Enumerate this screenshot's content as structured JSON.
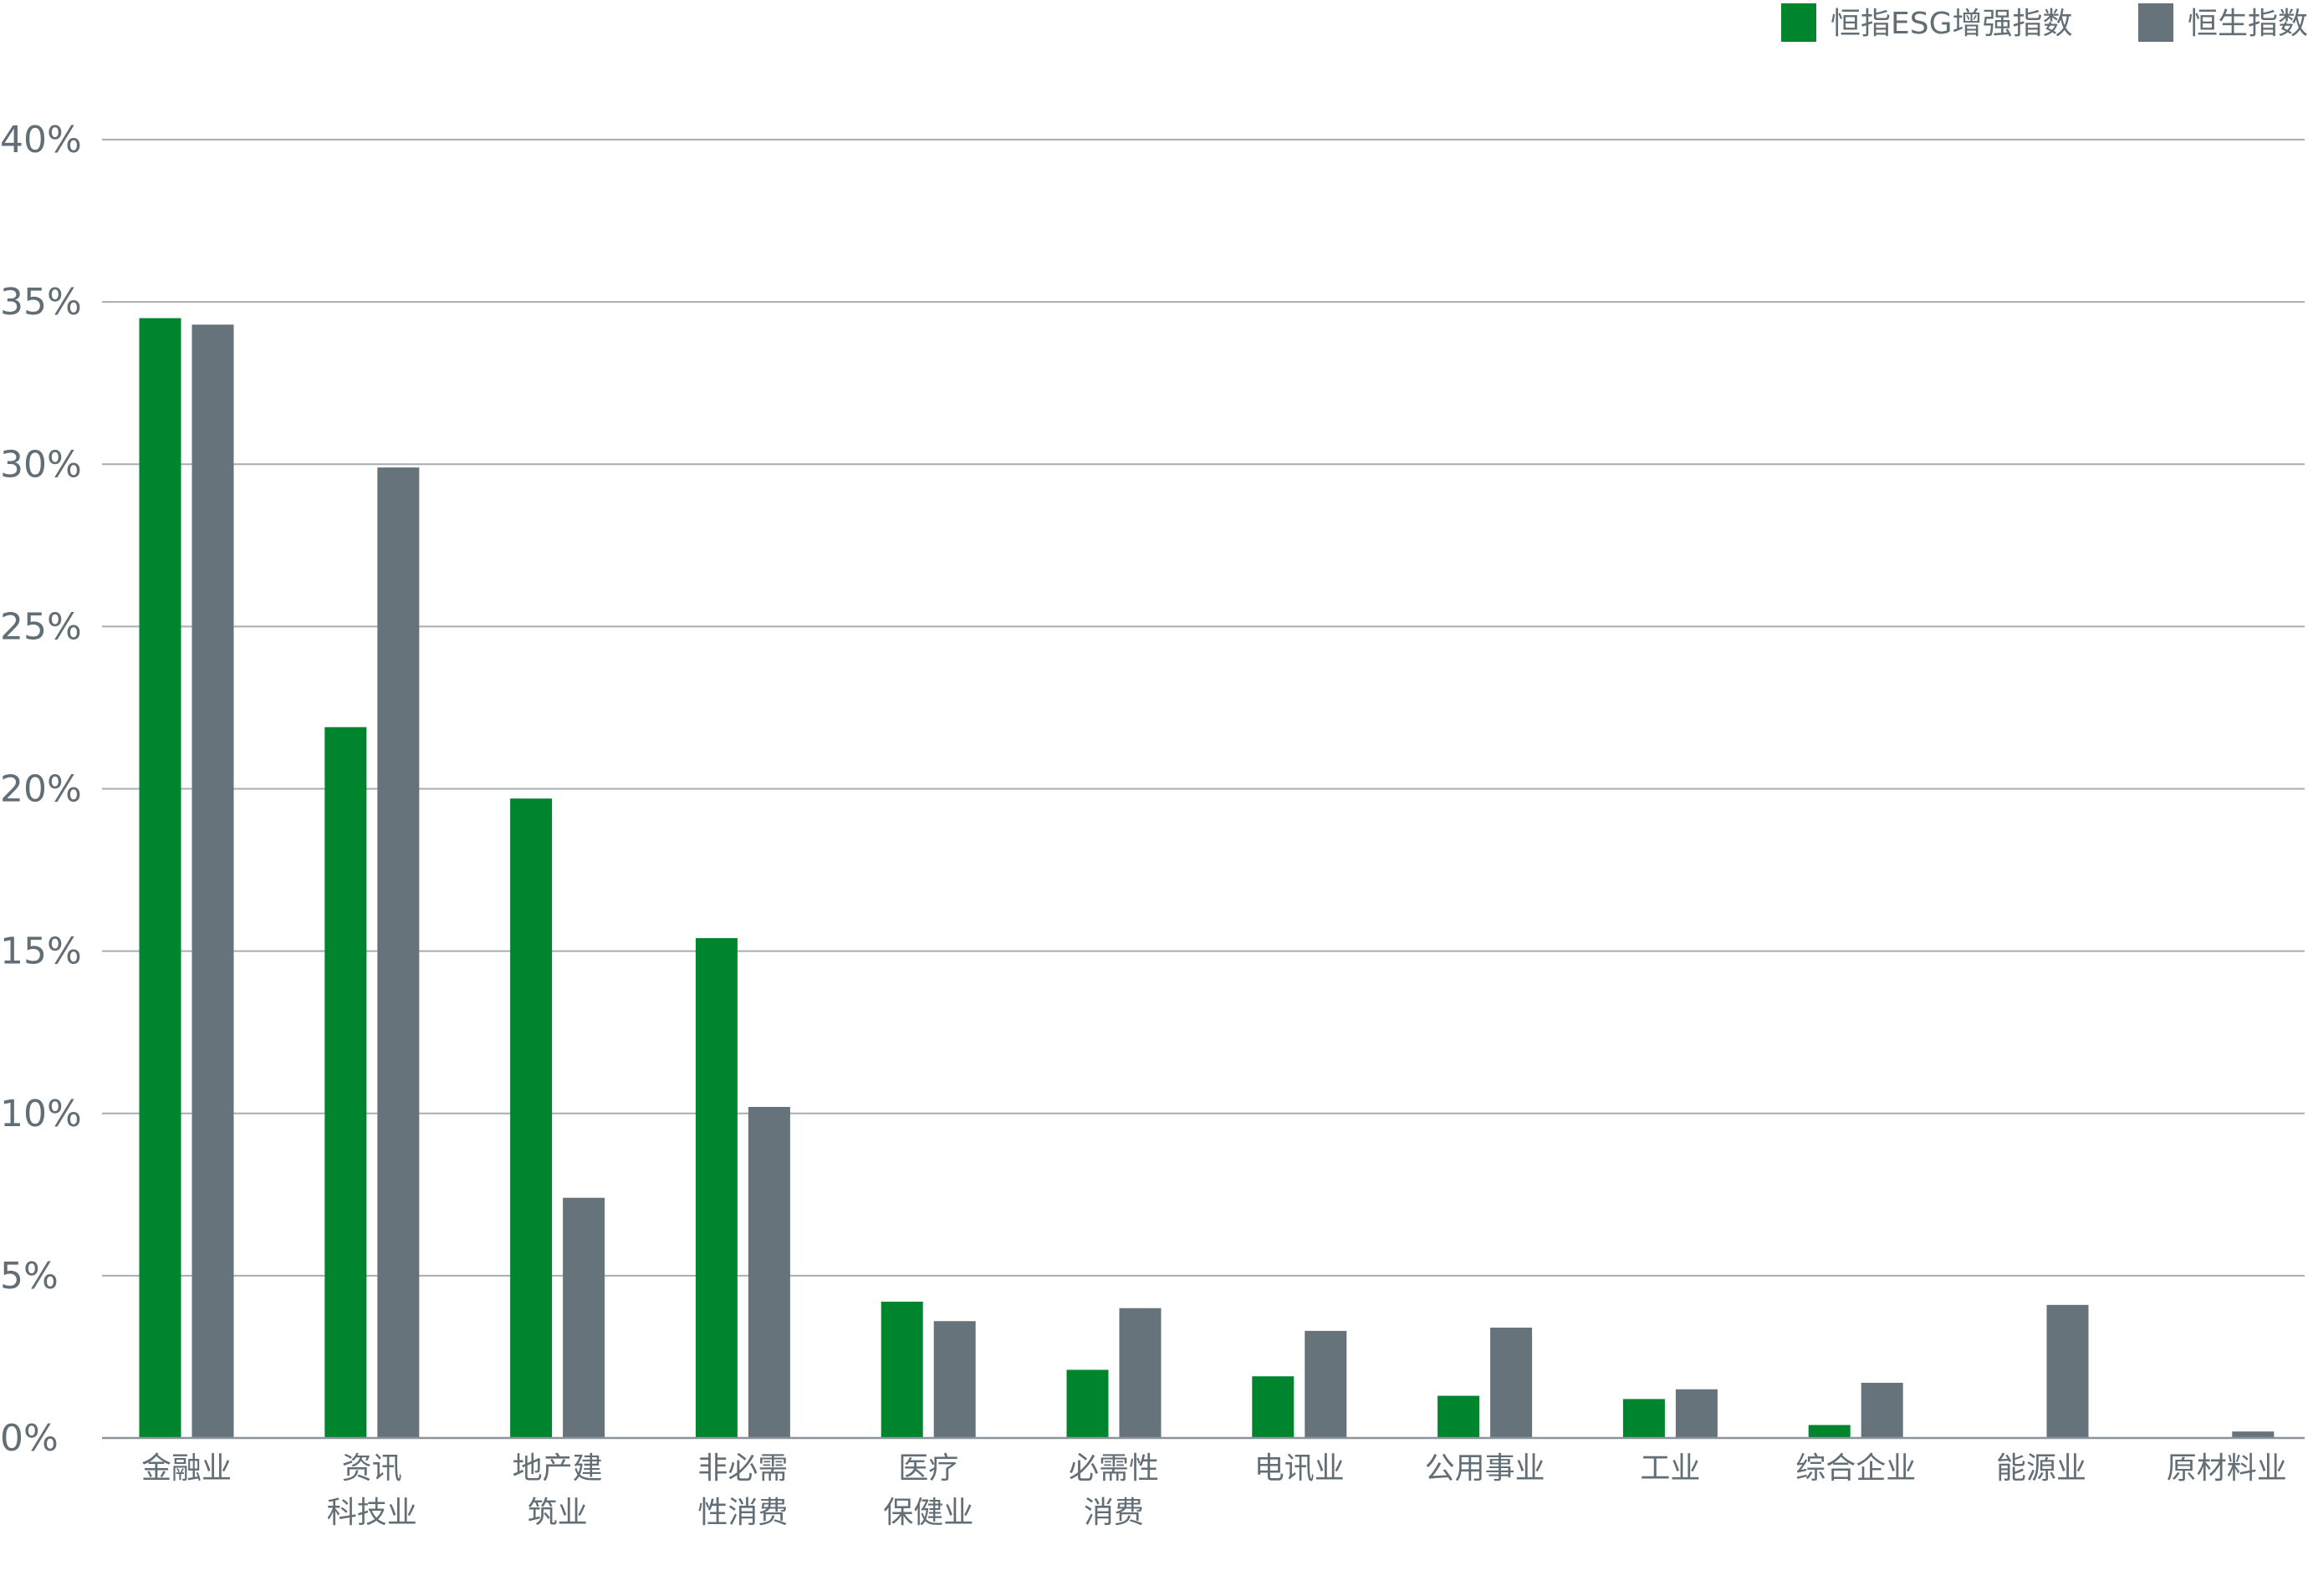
{
  "chart_data": {
    "type": "bar",
    "categories": [
      [
        "金融业"
      ],
      [
        "资讯",
        "科技业"
      ],
      [
        "地产建",
        "筑业"
      ],
      [
        "非必需",
        "性消费"
      ],
      [
        "医疗",
        "保健业"
      ],
      [
        "必需性",
        "消费"
      ],
      [
        "电讯业"
      ],
      [
        "公用事业"
      ],
      [
        "工业"
      ],
      [
        "综合企业"
      ],
      [
        "能源业"
      ],
      [
        "原材料业"
      ]
    ],
    "series": [
      {
        "name": "恒指ESG增强指数",
        "color": "#00852f",
        "values": [
          34.5,
          21.9,
          19.7,
          15.4,
          4.2,
          2.1,
          1.9,
          1.3,
          1.2,
          0.4,
          0.0,
          0.0
        ]
      },
      {
        "name": "恒生指数",
        "color": "#67737a",
        "values": [
          34.3,
          29.9,
          7.4,
          10.2,
          3.6,
          4.0,
          3.3,
          3.4,
          1.5,
          1.7,
          4.1,
          0.2
        ]
      }
    ],
    "ylim": [
      0,
      40
    ],
    "yticks": [
      "0%",
      "5%",
      "10%",
      "15%",
      "20%",
      "25%",
      "30%",
      "35%",
      "40%"
    ],
    "ytick_values": [
      0,
      5,
      10,
      15,
      20,
      25,
      30,
      35,
      40
    ],
    "grid": true,
    "legend_position": "top-right",
    "title": "",
    "xlabel": "",
    "ylabel": ""
  }
}
